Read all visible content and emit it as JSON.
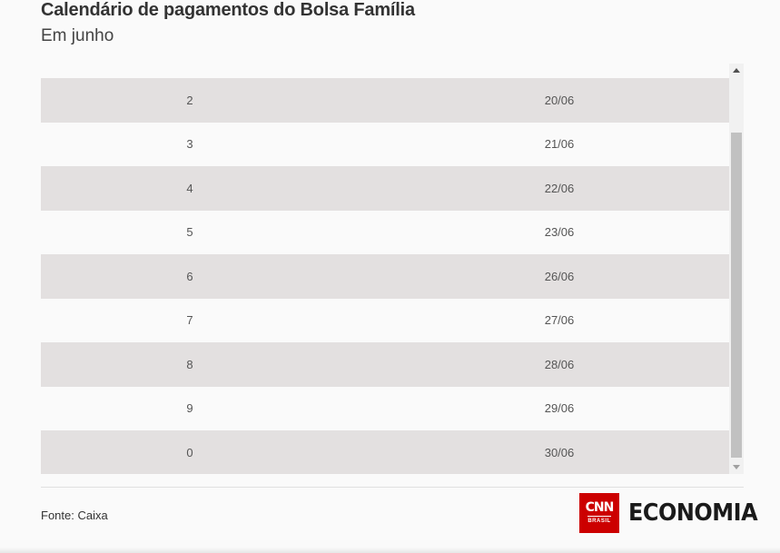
{
  "header": {
    "title": "Calendário de pagamentos do Bolsa Família",
    "subtitle": "Em junho"
  },
  "table": {
    "rows": [
      {
        "digit": "2",
        "date": "20/06"
      },
      {
        "digit": "3",
        "date": "21/06"
      },
      {
        "digit": "4",
        "date": "22/06"
      },
      {
        "digit": "5",
        "date": "23/06"
      },
      {
        "digit": "6",
        "date": "26/06"
      },
      {
        "digit": "7",
        "date": "27/06"
      },
      {
        "digit": "8",
        "date": "28/06"
      },
      {
        "digit": "9",
        "date": "29/06"
      },
      {
        "digit": "0",
        "date": "30/06"
      }
    ]
  },
  "footer": {
    "source": "Fonte: Caixa",
    "logo_cnn": "CNN",
    "logo_cnn_sub": "BRASIL",
    "logo_economia": "ECONOMIA"
  },
  "colors": {
    "shaded_row": "#e3e0e0",
    "brand_red": "#cc0000",
    "accent_teal": "#2ab7b0"
  }
}
